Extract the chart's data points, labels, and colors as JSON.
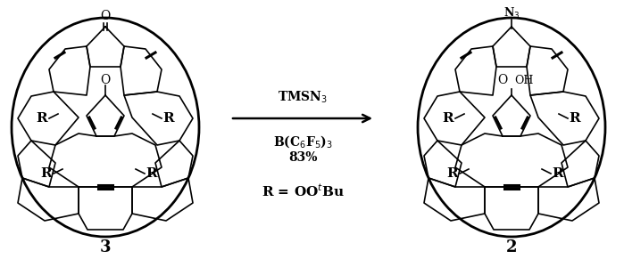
{
  "background_color": "#ffffff",
  "arrow_label_line1": "TMSN$_3$",
  "arrow_label_line2": "B(C$_6$F$_5$)$_3$",
  "arrow_label_line3": "83%",
  "r_label": "R = OO$^{t}$Bu",
  "compound_left": "3",
  "compound_right": "2",
  "lw": 1.2,
  "lw_bold": 2.2,
  "lw_outer": 2.0
}
